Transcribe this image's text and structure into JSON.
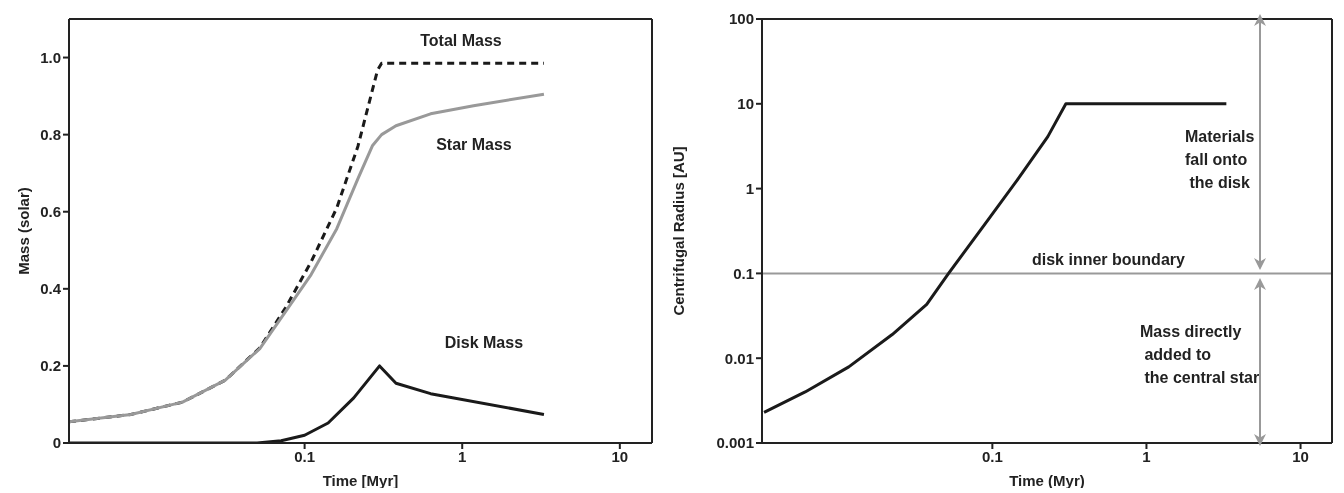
{
  "chart_data": [
    {
      "type": "line",
      "xlabel": "Time [Myr]",
      "ylabel": "Mass (solar)",
      "log": "x",
      "xlim": [
        0.0032,
        16
      ],
      "xticks": [
        0.1,
        1,
        10
      ],
      "ylim": [
        0,
        1.1
      ],
      "yticks": [
        0,
        0.2,
        0.4,
        0.6,
        0.8,
        {
          "value": 1,
          "label": "1.0"
        }
      ],
      "marker": "none",
      "series": [
        {
          "name": "Total Mass",
          "color": "#1a1a1a",
          "line_style": "dashed",
          "x": [
            0.0032,
            0.0079,
            0.0168,
            0.0314,
            0.052,
            0.0755,
            0.11,
            0.16,
            0.218,
            0.29,
            0.308,
            1.0,
            3.3
          ],
          "values": [
            0.055,
            0.074,
            0.106,
            0.163,
            0.247,
            0.35,
            0.47,
            0.61,
            0.77,
            0.967,
            0.985,
            0.985,
            0.985
          ]
        },
        {
          "name": "Star Mass",
          "color": "#999999",
          "line_style": "solid",
          "x": [
            0.0032,
            0.0079,
            0.0168,
            0.0314,
            0.052,
            0.0755,
            0.11,
            0.16,
            0.218,
            0.27,
            0.308,
            0.38,
            0.63,
            1.18,
            3.3
          ],
          "values": [
            0.055,
            0.074,
            0.106,
            0.163,
            0.245,
            0.34,
            0.437,
            0.556,
            0.686,
            0.772,
            0.8,
            0.823,
            0.854,
            0.875,
            0.905
          ]
        },
        {
          "name": "Disk Mass",
          "color": "#1a1a1a",
          "line_style": "solid",
          "x": [
            0.0032,
            0.05,
            0.071,
            0.1,
            0.141,
            0.205,
            0.299,
            0.38,
            0.63,
            3.3
          ],
          "values": [
            0,
            0,
            0.006,
            0.02,
            0.052,
            0.117,
            0.2,
            0.155,
            0.128,
            0.074
          ]
        }
      ]
    },
    {
      "type": "line",
      "xlabel": "Time (Myr)",
      "ylabel": "Centrifugal Radius [AU]",
      "log": "xy",
      "xlim": [
        0.0032,
        16
      ],
      "xticks": [
        0.1,
        1,
        10
      ],
      "ylim": [
        0.001,
        100
      ],
      "yticks": [
        0.001,
        0.01,
        0.1,
        1,
        10,
        100
      ],
      "marker": "none",
      "series": [
        {
          "color": "#1a1a1a",
          "line_style": "solid",
          "x": [
            0.0033,
            0.0061,
            0.0117,
            0.0224,
            0.0375,
            0.052,
            0.093,
            0.145,
            0.229,
            0.3,
            3.3
          ],
          "values": [
            0.0023,
            0.004,
            0.0079,
            0.019,
            0.043,
            0.1,
            0.42,
            1.26,
            4.1,
            10,
            10
          ]
        }
      ],
      "ref_lines": [
        {
          "axis": "y",
          "value": 0.1,
          "label": "disk inner boundary",
          "color": "#999999"
        }
      ],
      "annotations": [
        "Materials\nfall onto\n the disk",
        "Mass directly\n added to\n the central star"
      ]
    }
  ]
}
